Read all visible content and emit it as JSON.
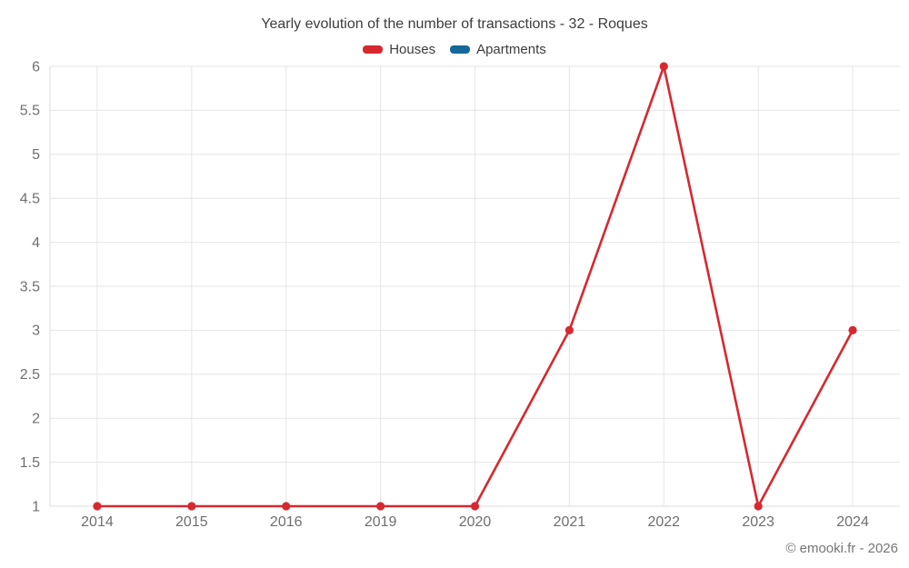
{
  "chart": {
    "title": "Yearly evolution of the number of transactions - 32 - Roques"
  },
  "footer": {
    "copyright": "© emooki.fr - 2026"
  },
  "chart_data": {
    "type": "line",
    "title": "Yearly evolution of the number of transactions - 32 - Roques",
    "categories": [
      "2014",
      "2015",
      "2016",
      "2019",
      "2020",
      "2021",
      "2022",
      "2023",
      "2024"
    ],
    "series": [
      {
        "name": "Houses",
        "color": "#d7282f",
        "values": [
          1,
          1,
          1,
          1,
          1,
          3,
          6,
          1,
          3
        ]
      },
      {
        "name": "Apartments",
        "color": "#17689b",
        "values": []
      }
    ],
    "xlabel": "",
    "ylabel": "",
    "ylim": [
      1,
      6
    ],
    "y_tick_step": 0.5,
    "y_tick_labels": [
      "1",
      "1.5",
      "2",
      "2.5",
      "3",
      "3.5",
      "4",
      "4.5",
      "5",
      "5.5",
      "6"
    ],
    "grid": true,
    "legend_position": "top",
    "grid_color": "#e6e6e6",
    "axis_line_color": "#dcdcdc",
    "tick_label_color": "#6f6f6f"
  }
}
